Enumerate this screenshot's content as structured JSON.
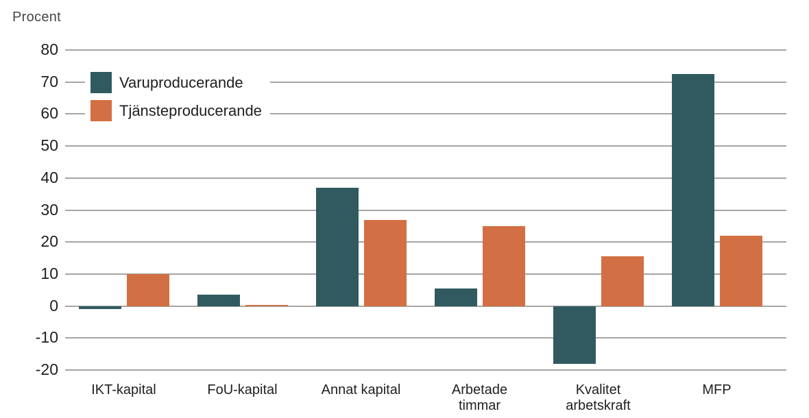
{
  "page": {
    "axis_unit_label": "Procent"
  },
  "chart_data": {
    "type": "bar",
    "title": "",
    "xlabel": "",
    "ylabel": "Procent",
    "categories": [
      "IKT-kapital",
      "FoU-kapital",
      "Annat kapital",
      "Arbetade\ntimmar",
      "Kvalitet\narbetskraft",
      "MFP"
    ],
    "series": [
      {
        "name": "Varuproducerande",
        "color": "#315A60",
        "values": [
          -1,
          3.5,
          37,
          5.5,
          -18,
          72.5
        ]
      },
      {
        "name": "Tjänsteproducerande",
        "color": "#D26F44",
        "values": [
          10,
          0.3,
          27,
          25,
          15.5,
          22
        ]
      }
    ],
    "y_ticks": [
      80,
      70,
      60,
      50,
      40,
      30,
      20,
      10,
      0,
      -10,
      -20
    ],
    "ylim": [
      -20,
      80
    ],
    "grid": true,
    "legend_position": "upper-left-inside",
    "colors": {
      "gridline": "#A5A5A2",
      "text": "#1f1f1f",
      "background": "#ffffff"
    }
  }
}
